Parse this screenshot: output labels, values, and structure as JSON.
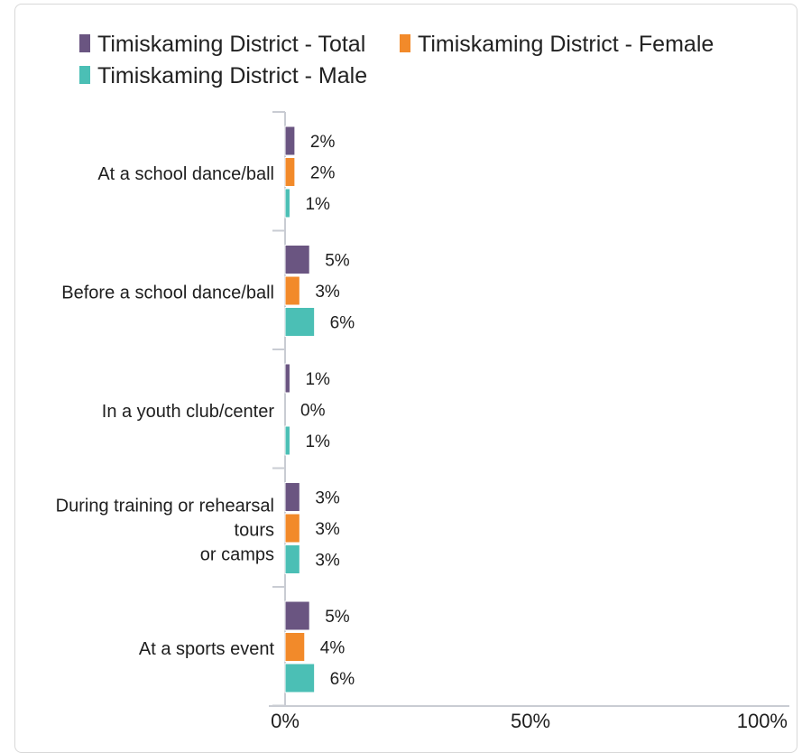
{
  "chart_data": {
    "type": "bar",
    "orientation": "horizontal",
    "categories": [
      [
        "At a school dance/ball"
      ],
      [
        "Before a school dance/ball"
      ],
      [
        "In a youth club/center"
      ],
      [
        "During training or rehearsal",
        "tours",
        "or camps"
      ],
      [
        "At a sports event"
      ]
    ],
    "series": [
      {
        "name": "Timiskaming District - Total",
        "color": "#6a5581",
        "values": [
          2,
          5,
          1,
          3,
          5
        ],
        "labels": [
          "2%",
          "5%",
          "1%",
          "3%",
          "5%"
        ]
      },
      {
        "name": "Timiskaming District - Female",
        "color": "#f28a2a",
        "values": [
          2,
          3,
          0,
          3,
          4
        ],
        "labels": [
          "2%",
          "3%",
          "0%",
          "3%",
          "4%"
        ]
      },
      {
        "name": "Timiskaming District - Male",
        "color": "#4bbfb5",
        "values": [
          1,
          6,
          1,
          3,
          6
        ],
        "labels": [
          "1%",
          "6%",
          "1%",
          "3%",
          "6%"
        ]
      }
    ],
    "xlim": [
      0,
      100
    ],
    "x_ticks": [
      0,
      50,
      100
    ],
    "x_tick_labels": [
      "0%",
      "50%",
      "100%"
    ],
    "legend_position": "top",
    "grid": false
  }
}
